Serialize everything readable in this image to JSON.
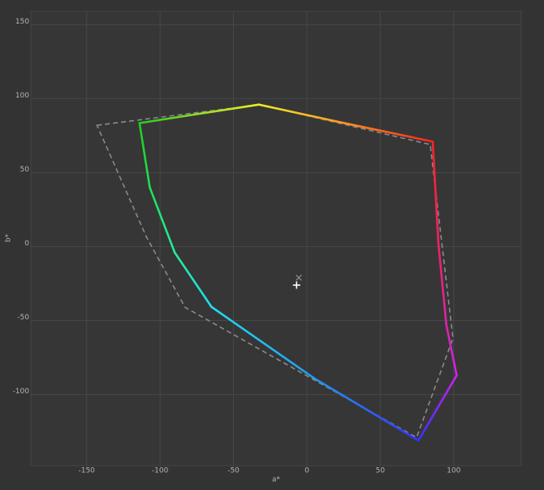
{
  "chart_data": {
    "type": "gamut",
    "x_label": "a*",
    "y_label": "b*",
    "xlim": [
      -188,
      146
    ],
    "ylim": [
      -148,
      159
    ],
    "xticks": [
      -150,
      -100,
      -50,
      0,
      50,
      100
    ],
    "yticks": [
      -100,
      -50,
      0,
      50,
      100,
      150
    ],
    "grid": true,
    "series": [
      {
        "style": "solid",
        "closed": true,
        "x": [
          -114,
          -72,
          -32.6,
          23,
          85.7,
          89.6,
          95,
          102,
          76,
          5,
          -65,
          -90,
          -107
        ],
        "values": [
          83.5,
          90,
          96,
          84,
          71,
          1.6,
          -53,
          -87,
          -131,
          -89,
          -40.7,
          -4,
          40
        ],
        "colors": [
          "#22cc22",
          "#99dd22",
          "#eeee22",
          "#ff9922",
          "#ff2222",
          "#ee2266",
          "#dd22aa",
          "#cc22ee",
          "#3333ff",
          "#2299ee",
          "#22ddee",
          "#22ee99",
          "#22dd55"
        ]
      },
      {
        "style": "dashed",
        "closed": true,
        "color": "#8a8a8a",
        "x": [
          -143,
          -32,
          84,
          99.5,
          74.7,
          -83,
          -109.5,
          -131.6
        ],
        "values": [
          82,
          96,
          69,
          -62,
          -129,
          -41,
          7,
          56.6
        ]
      }
    ],
    "markers": [
      {
        "symbol": "plus",
        "color": "#ffffff",
        "x": -7,
        "y": -26
      },
      {
        "symbol": "cross",
        "color": "#9a9a9a",
        "x": -5.5,
        "y": -21
      }
    ]
  }
}
